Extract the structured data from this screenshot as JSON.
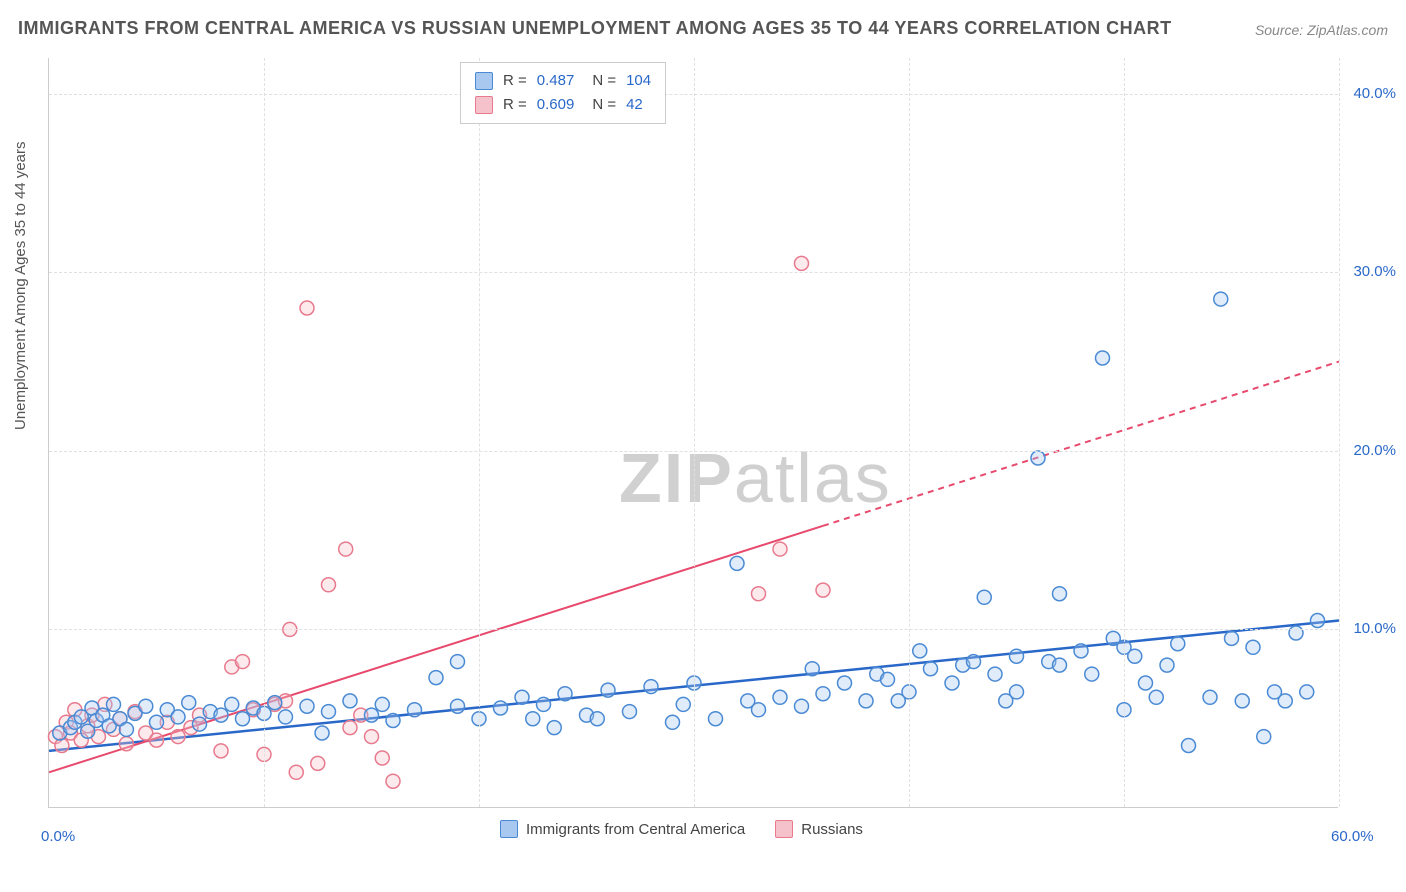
{
  "title": "IMMIGRANTS FROM CENTRAL AMERICA VS RUSSIAN UNEMPLOYMENT AMONG AGES 35 TO 44 YEARS CORRELATION CHART",
  "source": "Source: ZipAtlas.com",
  "y_axis_label": "Unemployment Among Ages 35 to 44 years",
  "watermark": {
    "bold": "ZIP",
    "rest": "atlas"
  },
  "chart": {
    "type": "scatter",
    "background": "#ffffff",
    "grid_color": "#e0e0e0",
    "axis_color": "#cccccc",
    "tick_label_color": "#2968c8",
    "title_color": "#555555",
    "title_fontsize": 18,
    "label_fontsize": 15,
    "xlim": [
      0,
      60
    ],
    "ylim": [
      0,
      42
    ],
    "x_ticks": [
      0,
      10,
      20,
      30,
      40,
      50,
      60
    ],
    "x_tick_labels": [
      "0.0%",
      "",
      "",
      "",
      "",
      "",
      "60.0%"
    ],
    "y_ticks": [
      10,
      20,
      30,
      40
    ],
    "y_tick_labels": [
      "10.0%",
      "20.0%",
      "30.0%",
      "40.0%"
    ],
    "point_radius": 7,
    "series": [
      {
        "name": "Immigrants from Central America",
        "color_fill": "#a8c8f0",
        "color_stroke": "#4a8ad4",
        "R": "0.487",
        "N": "104",
        "trend": {
          "x1": 0,
          "y1": 3.2,
          "x2": 60,
          "y2": 10.5,
          "color": "#2968c8",
          "width": 2.5,
          "solid_until_x": 60
        },
        "points": [
          [
            0.5,
            4.2
          ],
          [
            1,
            4.5
          ],
          [
            1.2,
            4.8
          ],
          [
            1.5,
            5.1
          ],
          [
            1.8,
            4.3
          ],
          [
            2,
            5.6
          ],
          [
            2.2,
            4.9
          ],
          [
            2.5,
            5.2
          ],
          [
            2.8,
            4.6
          ],
          [
            3,
            5.8
          ],
          [
            3.3,
            5.0
          ],
          [
            3.6,
            4.4
          ],
          [
            4,
            5.3
          ],
          [
            4.5,
            5.7
          ],
          [
            5,
            4.8
          ],
          [
            5.5,
            5.5
          ],
          [
            6,
            5.1
          ],
          [
            6.5,
            5.9
          ],
          [
            7,
            4.7
          ],
          [
            7.5,
            5.4
          ],
          [
            8,
            5.2
          ],
          [
            8.5,
            5.8
          ],
          [
            9,
            5.0
          ],
          [
            9.5,
            5.6
          ],
          [
            10,
            5.3
          ],
          [
            10.5,
            5.9
          ],
          [
            11,
            5.1
          ],
          [
            12,
            5.7
          ],
          [
            12.7,
            4.2
          ],
          [
            13,
            5.4
          ],
          [
            14,
            6.0
          ],
          [
            15,
            5.2
          ],
          [
            15.5,
            5.8
          ],
          [
            16,
            4.9
          ],
          [
            17,
            5.5
          ],
          [
            18,
            7.3
          ],
          [
            19,
            5.7
          ],
          [
            19,
            8.2
          ],
          [
            20,
            5.0
          ],
          [
            21,
            5.6
          ],
          [
            22,
            6.2
          ],
          [
            22.5,
            5.0
          ],
          [
            23,
            5.8
          ],
          [
            23.5,
            4.5
          ],
          [
            24,
            6.4
          ],
          [
            25,
            5.2
          ],
          [
            25.5,
            5.0
          ],
          [
            26,
            6.6
          ],
          [
            27,
            5.4
          ],
          [
            28,
            6.8
          ],
          [
            29,
            4.8
          ],
          [
            29.5,
            5.8
          ],
          [
            30,
            7.0
          ],
          [
            31,
            5.0
          ],
          [
            32,
            13.7
          ],
          [
            32.5,
            6.0
          ],
          [
            33,
            5.5
          ],
          [
            34,
            6.2
          ],
          [
            35,
            5.7
          ],
          [
            35.5,
            7.8
          ],
          [
            36,
            6.4
          ],
          [
            37,
            7.0
          ],
          [
            38,
            6.0
          ],
          [
            38.5,
            7.5
          ],
          [
            39,
            7.2
          ],
          [
            40,
            6.5
          ],
          [
            40.5,
            8.8
          ],
          [
            41,
            7.8
          ],
          [
            42,
            7.0
          ],
          [
            42.5,
            8.0
          ],
          [
            43,
            8.2
          ],
          [
            43.5,
            11.8
          ],
          [
            44,
            7.5
          ],
          [
            45,
            8.5
          ],
          [
            45,
            6.5
          ],
          [
            46,
            19.6
          ],
          [
            46.5,
            8.2
          ],
          [
            47,
            12.0
          ],
          [
            47,
            8.0
          ],
          [
            48,
            8.8
          ],
          [
            48.5,
            7.5
          ],
          [
            49,
            25.2
          ],
          [
            49.5,
            9.5
          ],
          [
            50,
            9.0
          ],
          [
            50.5,
            8.5
          ],
          [
            51,
            7.0
          ],
          [
            52,
            8.0
          ],
          [
            52.5,
            9.2
          ],
          [
            53,
            3.5
          ],
          [
            54,
            6.2
          ],
          [
            54.5,
            28.5
          ],
          [
            55,
            9.5
          ],
          [
            55.5,
            6.0
          ],
          [
            56,
            9.0
          ],
          [
            56.5,
            4.0
          ],
          [
            57,
            6.5
          ],
          [
            57.5,
            6.0
          ],
          [
            58,
            9.8
          ],
          [
            58.5,
            6.5
          ],
          [
            59,
            10.5
          ],
          [
            50,
            5.5
          ],
          [
            51.5,
            6.2
          ],
          [
            44.5,
            6.0
          ],
          [
            39.5,
            6.0
          ]
        ]
      },
      {
        "name": "Russians",
        "color_fill": "#f5c2cb",
        "color_stroke": "#e87a8e",
        "R": "0.609",
        "N": "42",
        "trend": {
          "x1": 0,
          "y1": 2.0,
          "x2": 60,
          "y2": 25.0,
          "color": "#e74a6c",
          "width": 2,
          "solid_until_x": 36
        },
        "points": [
          [
            0.3,
            4.0
          ],
          [
            0.6,
            3.5
          ],
          [
            0.8,
            4.8
          ],
          [
            1,
            4.2
          ],
          [
            1.2,
            5.5
          ],
          [
            1.5,
            3.8
          ],
          [
            1.8,
            4.6
          ],
          [
            2,
            5.2
          ],
          [
            2.3,
            4.0
          ],
          [
            2.6,
            5.8
          ],
          [
            3,
            4.4
          ],
          [
            3.3,
            5.0
          ],
          [
            3.6,
            3.6
          ],
          [
            4,
            5.4
          ],
          [
            4.5,
            4.2
          ],
          [
            5,
            3.8
          ],
          [
            5.5,
            4.8
          ],
          [
            6,
            4.0
          ],
          [
            6.6,
            4.5
          ],
          [
            7,
            5.2
          ],
          [
            8,
            3.2
          ],
          [
            8.5,
            7.9
          ],
          [
            9,
            8.2
          ],
          [
            9.5,
            5.5
          ],
          [
            10,
            3.0
          ],
          [
            10.5,
            5.8
          ],
          [
            11,
            6.0
          ],
          [
            11.2,
            10.0
          ],
          [
            11.5,
            2.0
          ],
          [
            12,
            28.0
          ],
          [
            12.5,
            2.5
          ],
          [
            13,
            12.5
          ],
          [
            13.8,
            14.5
          ],
          [
            14,
            4.5
          ],
          [
            14.5,
            5.2
          ],
          [
            15,
            4.0
          ],
          [
            15.5,
            2.8
          ],
          [
            16,
            1.5
          ],
          [
            33,
            12.0
          ],
          [
            34,
            14.5
          ],
          [
            35,
            30.5
          ],
          [
            36,
            12.2
          ]
        ]
      }
    ]
  },
  "legend_top": {
    "rows": [
      {
        "swatch_fill": "#a8c8f0",
        "swatch_stroke": "#4a8ad4",
        "r_label": "R =",
        "r_val": "0.487",
        "n_label": "N =",
        "n_val": "104"
      },
      {
        "swatch_fill": "#f5c2cb",
        "swatch_stroke": "#e87a8e",
        "r_label": "R =",
        "r_val": "0.609",
        "n_label": "N =",
        "n_val": " 42"
      }
    ]
  },
  "legend_bottom": {
    "items": [
      {
        "swatch_fill": "#a8c8f0",
        "swatch_stroke": "#4a8ad4",
        "label": "Immigrants from Central America"
      },
      {
        "swatch_fill": "#f5c2cb",
        "swatch_stroke": "#e87a8e",
        "label": "Russians"
      }
    ]
  }
}
